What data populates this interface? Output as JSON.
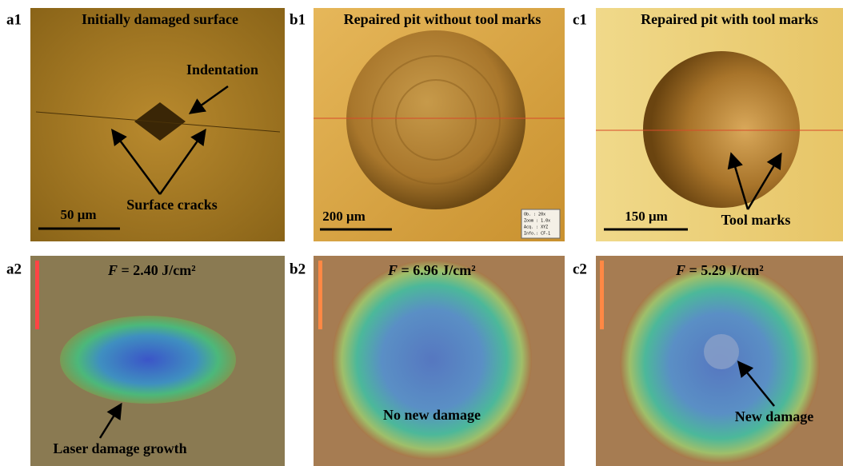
{
  "panels": [
    {
      "id": "a1",
      "title": "Initially damaged surface",
      "annotations": [
        "Indentation",
        "Surface cracks"
      ],
      "scale": "50 μm"
    },
    {
      "id": "b1",
      "title": "Repaired pit without tool marks",
      "scale": "200 μm",
      "info": [
        "Ob. : 20x",
        "Zoom : 1.0x",
        "Acq. : XYZ",
        "Info.: CF-1"
      ]
    },
    {
      "id": "c1",
      "title": "Repaired pit with tool marks",
      "annotations": [
        "Tool marks"
      ],
      "scale": "150 μm"
    },
    {
      "id": "a2",
      "fluence": {
        "symbol": "F",
        "value": "= 2.40 J/cm²"
      },
      "annotations": [
        "Laser damage growth"
      ]
    },
    {
      "id": "b2",
      "fluence": {
        "symbol": "F",
        "value": "= 6.96 J/cm²"
      },
      "annotations": [
        "No new damage"
      ]
    },
    {
      "id": "c2",
      "fluence": {
        "symbol": "F",
        "value": "= 5.29 J/cm²"
      },
      "annotations": [
        "New damage"
      ]
    }
  ]
}
